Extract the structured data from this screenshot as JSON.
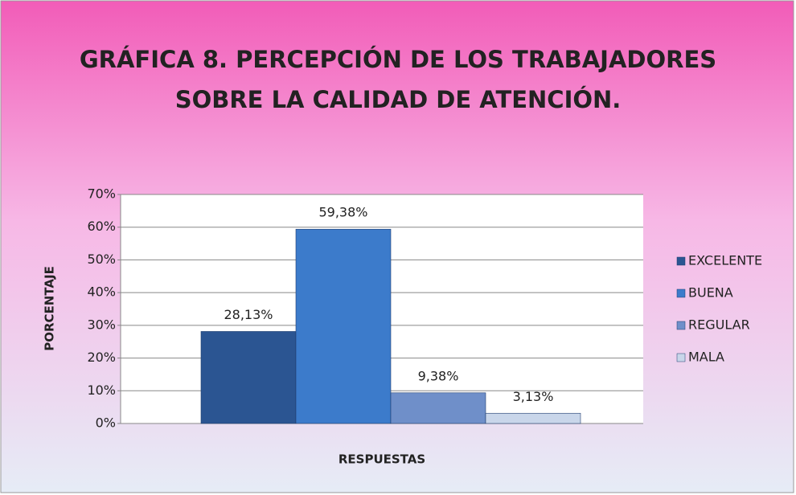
{
  "chart_data": {
    "type": "bar",
    "title": [
      "GRÁFICA 8.  PERCEPCIÓN DE LOS TRABAJADORES",
      "SOBRE LA CALIDAD DE ATENCIÓN."
    ],
    "x_label": "RESPUESTAS",
    "y_label": "PORCENTAJE",
    "categories": [
      null
    ],
    "series": [
      {
        "name": "EXCELENTE",
        "color": "#2b5592",
        "values": [
          28.13
        ],
        "value_labels": [
          "28,13%"
        ]
      },
      {
        "name": "BUENA",
        "color": "#3c7bcb",
        "values": [
          59.38
        ],
        "value_labels": [
          "59,38%"
        ]
      },
      {
        "name": "REGULAR",
        "color": "#6f8fc9",
        "values": [
          9.38
        ],
        "value_labels": [
          "9,38%"
        ]
      },
      {
        "name": "MALA",
        "color": "#c9d6ea",
        "values": [
          3.13
        ],
        "value_labels": [
          "3,13%"
        ]
      }
    ],
    "ylim": [
      0,
      70
    ],
    "yticks": [
      {
        "value": 0,
        "label": "0%"
      },
      {
        "value": 10,
        "label": "10%"
      },
      {
        "value": 20,
        "label": "20%"
      },
      {
        "value": 30,
        "label": "30%"
      },
      {
        "value": 40,
        "label": "40%"
      },
      {
        "value": 50,
        "label": "50%"
      },
      {
        "value": 60,
        "label": "60%"
      },
      {
        "value": 70,
        "label": "70%"
      }
    ],
    "grid": true,
    "legend": "right"
  }
}
